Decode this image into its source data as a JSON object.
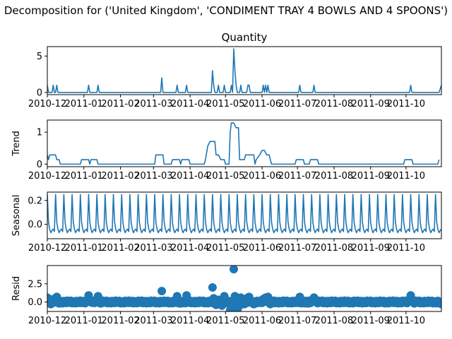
{
  "chart_data": {
    "type": "line",
    "suptitle": "Decomposition for ('United Kingdom', 'CONDIMENT TRAY 4 BOWLS AND 4 SPOONS')",
    "color": "#1f77b4",
    "x_start": "2010-12-01",
    "x_end": "2011-10-31",
    "x_ticks": [
      "2010-12",
      "2011-01",
      "2011-02",
      "2011-03",
      "2011-04",
      "2011-05",
      "2011-06",
      "2011-07",
      "2011-08",
      "2011-09",
      "2011-10"
    ],
    "panels": [
      {
        "id": "observed",
        "title": "Quantity",
        "ylabel": "",
        "kind": "line",
        "ylim": [
          -0.3,
          6.3
        ],
        "yticks": [
          0,
          5
        ],
        "points": [
          [
            "2010-12-01",
            1
          ],
          [
            "2010-12-02",
            0
          ],
          [
            "2010-12-05",
            0
          ],
          [
            "2010-12-06",
            1
          ],
          [
            "2010-12-07",
            0
          ],
          [
            "2010-12-08",
            0
          ],
          [
            "2010-12-09",
            1
          ],
          [
            "2010-12-10",
            0
          ],
          [
            "2011-01-04",
            0
          ],
          [
            "2011-01-05",
            1
          ],
          [
            "2011-01-06",
            0
          ],
          [
            "2011-01-12",
            0
          ],
          [
            "2011-01-13",
            1
          ],
          [
            "2011-01-14",
            0
          ],
          [
            "2011-03-07",
            0
          ],
          [
            "2011-03-08",
            2
          ],
          [
            "2011-03-09",
            0
          ],
          [
            "2011-03-20",
            0
          ],
          [
            "2011-03-21",
            1
          ],
          [
            "2011-03-22",
            0
          ],
          [
            "2011-03-28",
            0
          ],
          [
            "2011-03-29",
            1
          ],
          [
            "2011-03-30",
            0
          ],
          [
            "2011-04-19",
            0
          ],
          [
            "2011-04-20",
            3
          ],
          [
            "2011-04-21",
            1
          ],
          [
            "2011-04-22",
            0
          ],
          [
            "2011-04-24",
            0
          ],
          [
            "2011-04-25",
            1
          ],
          [
            "2011-04-26",
            0
          ],
          [
            "2011-04-29",
            0
          ],
          [
            "2011-04-30",
            1
          ],
          [
            "2011-05-01",
            0
          ],
          [
            "2011-05-05",
            0
          ],
          [
            "2011-05-06",
            1
          ],
          [
            "2011-05-07",
            0
          ],
          [
            "2011-05-08",
            6
          ],
          [
            "2011-05-09",
            3
          ],
          [
            "2011-05-10",
            1
          ],
          [
            "2011-05-11",
            0
          ],
          [
            "2011-05-13",
            0
          ],
          [
            "2011-05-14",
            1
          ],
          [
            "2011-05-15",
            0
          ],
          [
            "2011-05-19",
            0
          ],
          [
            "2011-05-20",
            1
          ],
          [
            "2011-05-21",
            1
          ],
          [
            "2011-05-22",
            0
          ],
          [
            "2011-06-01",
            0
          ],
          [
            "2011-06-02",
            1
          ],
          [
            "2011-06-03",
            0
          ],
          [
            "2011-06-04",
            1
          ],
          [
            "2011-06-05",
            0
          ],
          [
            "2011-06-06",
            1
          ],
          [
            "2011-06-07",
            0
          ],
          [
            "2011-07-02",
            0
          ],
          [
            "2011-07-03",
            1
          ],
          [
            "2011-07-04",
            0
          ],
          [
            "2011-07-14",
            0
          ],
          [
            "2011-07-15",
            1
          ],
          [
            "2011-07-16",
            0
          ],
          [
            "2011-10-04",
            0
          ],
          [
            "2011-10-05",
            1
          ],
          [
            "2011-10-06",
            0
          ],
          [
            "2011-10-29",
            0
          ],
          [
            "2011-10-31",
            1
          ]
        ]
      },
      {
        "id": "trend",
        "title": "",
        "ylabel": "Trend",
        "kind": "line",
        "ylim": [
          -0.08,
          1.38
        ],
        "yticks": [
          0,
          1
        ],
        "points": [
          [
            "2010-12-01",
            0.29
          ],
          [
            "2010-12-02",
            0.14
          ],
          [
            "2010-12-03",
            0.29
          ],
          [
            "2010-12-08",
            0.29
          ],
          [
            "2010-12-09",
            0.14
          ],
          [
            "2010-12-11",
            0.14
          ],
          [
            "2010-12-12",
            0
          ],
          [
            "2010-12-29",
            0
          ],
          [
            "2010-12-30",
            0.14
          ],
          [
            "2011-01-05",
            0.14
          ],
          [
            "2011-01-06",
            0
          ],
          [
            "2011-01-07",
            0.14
          ],
          [
            "2011-01-12",
            0.14
          ],
          [
            "2011-01-13",
            0
          ],
          [
            "2011-03-02",
            0
          ],
          [
            "2011-03-03",
            0.29
          ],
          [
            "2011-03-09",
            0.29
          ],
          [
            "2011-03-10",
            0
          ],
          [
            "2011-03-16",
            0
          ],
          [
            "2011-03-17",
            0.14
          ],
          [
            "2011-03-23",
            0.14
          ],
          [
            "2011-03-24",
            0
          ],
          [
            "2011-03-25",
            0.14
          ],
          [
            "2011-03-31",
            0.14
          ],
          [
            "2011-04-01",
            0
          ],
          [
            "2011-04-13",
            0
          ],
          [
            "2011-04-14",
            0.14
          ],
          [
            "2011-04-16",
            0.57
          ],
          [
            "2011-04-18",
            0.71
          ],
          [
            "2011-04-22",
            0.71
          ],
          [
            "2011-04-23",
            0.29
          ],
          [
            "2011-04-25",
            0.29
          ],
          [
            "2011-04-27",
            0.14
          ],
          [
            "2011-04-30",
            0.14
          ],
          [
            "2011-05-01",
            0
          ],
          [
            "2011-05-04",
            0
          ],
          [
            "2011-05-05",
            1.0
          ],
          [
            "2011-05-06",
            1.29
          ],
          [
            "2011-05-08",
            1.29
          ],
          [
            "2011-05-10",
            1.14
          ],
          [
            "2011-05-12",
            1.14
          ],
          [
            "2011-05-13",
            0.14
          ],
          [
            "2011-05-17",
            0.14
          ],
          [
            "2011-05-18",
            0.29
          ],
          [
            "2011-05-25",
            0.29
          ],
          [
            "2011-05-26",
            0
          ],
          [
            "2011-05-27",
            0.14
          ],
          [
            "2011-05-30",
            0.29
          ],
          [
            "2011-06-01",
            0.43
          ],
          [
            "2011-06-03",
            0.43
          ],
          [
            "2011-06-05",
            0.29
          ],
          [
            "2011-06-07",
            0.29
          ],
          [
            "2011-06-09",
            0
          ],
          [
            "2011-06-29",
            0
          ],
          [
            "2011-06-30",
            0.14
          ],
          [
            "2011-07-06",
            0.14
          ],
          [
            "2011-07-07",
            0
          ],
          [
            "2011-07-11",
            0
          ],
          [
            "2011-07-12",
            0.14
          ],
          [
            "2011-07-18",
            0.14
          ],
          [
            "2011-07-19",
            0
          ],
          [
            "2011-09-29",
            0
          ],
          [
            "2011-09-30",
            0.14
          ],
          [
            "2011-10-06",
            0.14
          ],
          [
            "2011-10-07",
            0
          ],
          [
            "2011-10-28",
            0
          ],
          [
            "2011-10-29",
            0.14
          ]
        ]
      },
      {
        "id": "seasonal",
        "title": "",
        "ylabel": "Seasonal",
        "kind": "seasonal",
        "ylim": [
          -0.12,
          0.27
        ],
        "yticks": [
          0.0,
          0.2
        ],
        "period_days": 7,
        "cycle": [
          0.25,
          0.02,
          -0.04,
          -0.07,
          -0.05,
          -0.04,
          -0.06
        ]
      },
      {
        "id": "resid",
        "title": "",
        "ylabel": "Resid",
        "kind": "scatter",
        "ylim": [
          -1.3,
          5.0
        ],
        "yticks": [
          0.0,
          2.5
        ],
        "marker_size": 6,
        "background_level": 0.0,
        "background_jitter": 0.18,
        "points": [
          [
            "2010-12-01",
            0.6
          ],
          [
            "2010-12-06",
            0.4
          ],
          [
            "2010-12-09",
            0.7
          ],
          [
            "2010-12-04",
            -0.3
          ],
          [
            "2010-12-11",
            -0.2
          ],
          [
            "2011-01-05",
            0.9
          ],
          [
            "2011-01-13",
            0.8
          ],
          [
            "2011-01-15",
            -0.2
          ],
          [
            "2011-03-08",
            1.5
          ],
          [
            "2011-03-21",
            0.8
          ],
          [
            "2011-03-29",
            0.9
          ],
          [
            "2011-03-23",
            -0.2
          ],
          [
            "2011-04-20",
            2.0
          ],
          [
            "2011-04-21",
            0.5
          ],
          [
            "2011-04-23",
            -0.4
          ],
          [
            "2011-04-25",
            0.3
          ],
          [
            "2011-04-30",
            0.8
          ],
          [
            "2011-04-28",
            -0.5
          ],
          [
            "2011-05-05",
            -1.1
          ],
          [
            "2011-05-06",
            -0.6
          ],
          [
            "2011-05-08",
            4.5
          ],
          [
            "2011-05-09",
            0.8
          ],
          [
            "2011-05-10",
            -1.1
          ],
          [
            "2011-05-11",
            -1.1
          ],
          [
            "2011-05-12",
            -0.7
          ],
          [
            "2011-05-14",
            0.6
          ],
          [
            "2011-05-17",
            -0.3
          ],
          [
            "2011-05-20",
            0.6
          ],
          [
            "2011-05-21",
            0.7
          ],
          [
            "2011-05-25",
            -0.3
          ],
          [
            "2011-06-02",
            0.4
          ],
          [
            "2011-06-04",
            0.6
          ],
          [
            "2011-06-06",
            0.7
          ],
          [
            "2011-06-08",
            -0.3
          ],
          [
            "2011-07-03",
            0.7
          ],
          [
            "2011-07-15",
            0.6
          ],
          [
            "2011-07-10",
            -0.2
          ],
          [
            "2011-10-05",
            0.9
          ],
          [
            "2011-10-08",
            -0.2
          ],
          [
            "2011-10-31",
            -0.3
          ]
        ]
      }
    ]
  }
}
